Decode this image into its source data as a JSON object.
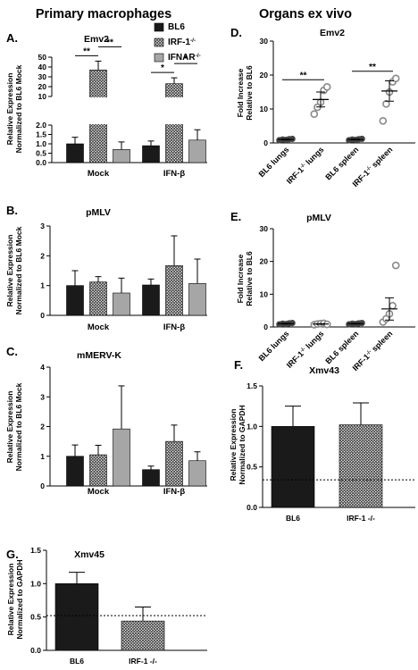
{
  "headers": {
    "left": "Primary macrophages",
    "right": "Organs ex vivo"
  },
  "colors": {
    "bl6": "#1a1a1a",
    "ifnar": "#a6a6a6",
    "hatch_bg": "#ffffff",
    "hatch_line": "#222222",
    "point_fill": "#444444",
    "point_open": "#888888"
  },
  "legend": {
    "items": [
      {
        "key": "BL6",
        "fill": "solid"
      },
      {
        "key": "IRF-1",
        "sup": "-/-",
        "fill": "hatch"
      },
      {
        "key": "IFNAR",
        "sup": "-/-",
        "fill": "gray"
      }
    ]
  },
  "chart_data": [
    {
      "id": "A",
      "letter": "A.",
      "type": "bar",
      "title": "Emv2",
      "ylabel_lines": [
        "Relative Expression",
        "Normalized to BL6 Mock"
      ],
      "categories": [
        "Mock",
        "IFN-β"
      ],
      "series": [
        {
          "name": "BL6",
          "values": [
            1.0,
            0.9
          ],
          "errors": [
            0.35,
            0.25
          ]
        },
        {
          "name": "IRF-1-/-",
          "values": [
            37,
            23
          ],
          "errors": [
            9,
            6
          ]
        },
        {
          "name": "IFNAR-/-",
          "values": [
            0.7,
            1.2
          ],
          "errors": [
            0.4,
            0.55
          ]
        }
      ],
      "y_axis_break": {
        "lower": [
          0,
          2.0
        ],
        "upper": [
          10,
          50
        ]
      },
      "yticks_lower": [
        "0.0",
        "0.5",
        "1.0",
        "1.5",
        "2.0"
      ],
      "yticks_upper": [
        "10",
        "20",
        "30",
        "40",
        "50"
      ],
      "significance": [
        {
          "group": "Mock",
          "from": "BL6",
          "to": "IRF-1-/-",
          "label": "**"
        },
        {
          "group": "Mock",
          "from": "IRF-1-/-",
          "to": "IFNAR-/-",
          "label": "**"
        },
        {
          "group": "IFN-β",
          "from": "BL6",
          "to": "IRF-1-/-",
          "label": "*"
        },
        {
          "group": "IFN-β",
          "from": "IRF-1-/-",
          "to": "IFNAR-/-",
          "label": "*"
        }
      ]
    },
    {
      "id": "B",
      "letter": "B.",
      "type": "bar",
      "title": "pMLV",
      "ylabel_lines": [
        "Relative Expression",
        "Normalized to BL6 Mock"
      ],
      "categories": [
        "Mock",
        "IFN-β"
      ],
      "series": [
        {
          "name": "BL6",
          "values": [
            1.0,
            1.02
          ],
          "errors": [
            0.5,
            0.2
          ]
        },
        {
          "name": "IRF-1-/-",
          "values": [
            1.12,
            1.67
          ],
          "errors": [
            0.18,
            1.0
          ]
        },
        {
          "name": "IFNAR-/-",
          "values": [
            0.75,
            1.07
          ],
          "errors": [
            0.5,
            0.82
          ]
        }
      ],
      "ylim": [
        0,
        3
      ],
      "yticks": [
        "0",
        "1",
        "2",
        "3"
      ]
    },
    {
      "id": "C",
      "letter": "C.",
      "type": "bar",
      "title": "mMERV-K",
      "ylabel_lines": [
        "Relative Expression",
        "Normalized to BL6 Mock"
      ],
      "categories": [
        "Mock",
        "IFN-β"
      ],
      "series": [
        {
          "name": "BL6",
          "values": [
            1.0,
            0.55
          ],
          "errors": [
            0.38,
            0.12
          ]
        },
        {
          "name": "IRF-1-/-",
          "values": [
            1.05,
            1.5
          ],
          "errors": [
            0.32,
            0.55
          ]
        },
        {
          "name": "IFNAR-/-",
          "values": [
            1.92,
            0.85
          ],
          "errors": [
            1.45,
            0.3
          ]
        }
      ],
      "ylim": [
        0,
        4
      ],
      "yticks": [
        "0",
        "1",
        "2",
        "3",
        "4"
      ]
    },
    {
      "id": "D",
      "letter": "D.",
      "type": "scatter",
      "title": "Emv2",
      "ylabel_lines": [
        "Fold Increase",
        "Relative to BL6"
      ],
      "groups": [
        {
          "label": "BL6 lungs",
          "points": [
            0.8,
            1.0,
            0.9,
            1.1,
            1.2
          ],
          "mean": 1.0,
          "sem": 0.1,
          "style": "filled"
        },
        {
          "label": "IRF-1",
          "sup": "-/-",
          "suffix": " lungs",
          "points": [
            8.5,
            10.5,
            12.0,
            15.5,
            16.5
          ],
          "mean": 12.8,
          "sem": 2.2,
          "style": "open"
        },
        {
          "label": "BL6 spleen",
          "points": [
            0.8,
            1.0,
            0.9,
            1.1,
            1.2
          ],
          "mean": 1.0,
          "sem": 0.1,
          "style": "filled"
        },
        {
          "label": "IRF-1",
          "sup": "-/-",
          "suffix": " spleen",
          "points": [
            6.5,
            11.5,
            15.0,
            18.0,
            19.0
          ],
          "mean": 15.3,
          "sem": 3.0,
          "style": "open"
        }
      ],
      "ylim": [
        0,
        30
      ],
      "yticks": [
        "0",
        "10",
        "20",
        "30"
      ],
      "significance": [
        {
          "from": 0,
          "to": 1,
          "label": "**"
        },
        {
          "from": 2,
          "to": 3,
          "label": "**"
        }
      ]
    },
    {
      "id": "E",
      "letter": "E.",
      "type": "scatter",
      "title": "pMLV",
      "ylabel_lines": [
        "Fold Increase",
        "Relative to BL6"
      ],
      "groups": [
        {
          "label": "BL6 lungs",
          "points": [
            0.8,
            1.0,
            0.9,
            1.1,
            1.2
          ],
          "mean": 1.0,
          "sem": 0.1,
          "style": "filled"
        },
        {
          "label": "IRF-1",
          "sup": "-/-",
          "suffix": " lungs",
          "points": [
            0.7,
            0.9,
            1.0,
            1.1,
            0.8
          ],
          "mean": 0.9,
          "sem": 0.1,
          "style": "open"
        },
        {
          "label": "BL6 spleen",
          "points": [
            0.8,
            1.0,
            0.9,
            1.1,
            1.2
          ],
          "mean": 1.0,
          "sem": 0.1,
          "style": "filled"
        },
        {
          "label": "IRF-1",
          "sup": "-/-",
          "suffix": " spleen",
          "points": [
            1.5,
            2.5,
            4.0,
            6.5,
            18.8
          ],
          "mean": 5.5,
          "sem": 3.4,
          "style": "open"
        }
      ],
      "ylim": [
        0,
        30
      ],
      "yticks": [
        "0",
        "10",
        "20",
        "30"
      ]
    },
    {
      "id": "F",
      "letter": "F.",
      "type": "bar",
      "title": "Xmv43",
      "ylabel_lines": [
        "Relative Expression",
        "Normalized to GAPDH"
      ],
      "categories": [
        "BL6",
        "IRF-1 -/-"
      ],
      "values": [
        1.0,
        1.02
      ],
      "errors": [
        0.25,
        0.27
      ],
      "fills": [
        "solid",
        "hatch"
      ],
      "reference_line": 0.34,
      "ylim": [
        0,
        1.5
      ],
      "yticks": [
        "0.0",
        "0.5",
        "1.0",
        "1.5"
      ]
    },
    {
      "id": "G",
      "letter": "G.",
      "type": "bar",
      "title": "Xmv45",
      "ylabel_lines": [
        "Relative Expression",
        "Normalized to GAPDH"
      ],
      "categories": [
        "BL6",
        "IRF-1 -/-"
      ],
      "values": [
        1.0,
        0.44
      ],
      "errors": [
        0.17,
        0.21
      ],
      "fills": [
        "solid",
        "hatch"
      ],
      "reference_line": 0.52,
      "ylim": [
        0,
        1.5
      ],
      "yticks": [
        "0.0",
        "0.5",
        "1.0",
        "1.5"
      ]
    }
  ]
}
